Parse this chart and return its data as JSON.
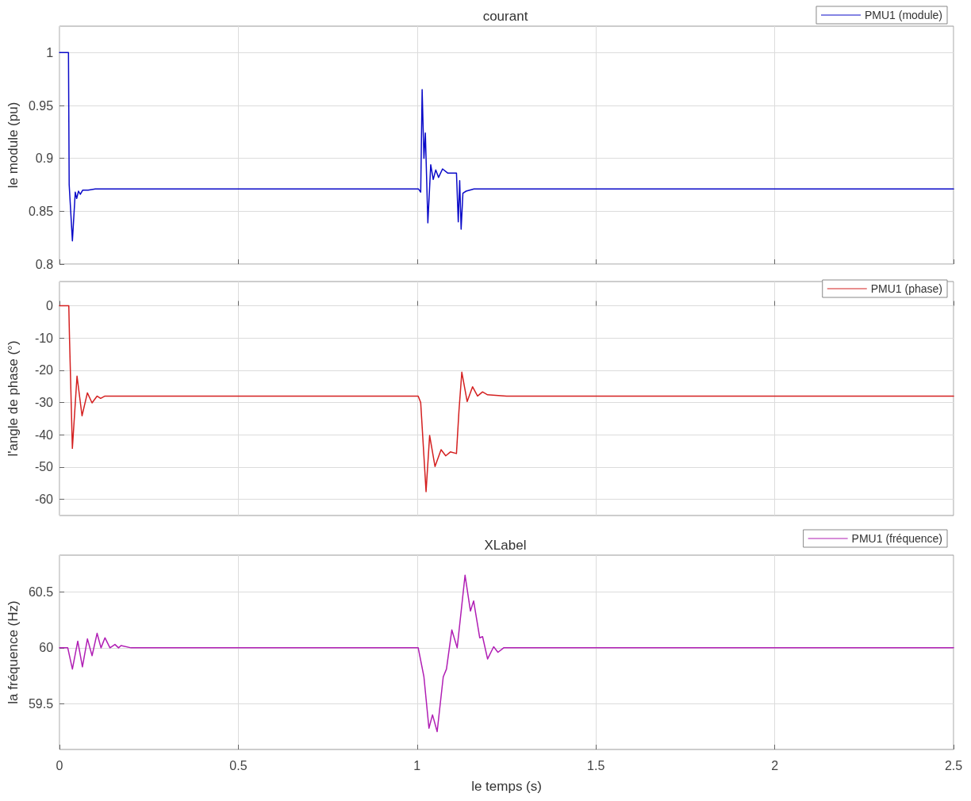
{
  "chart_data": [
    {
      "type": "line",
      "title": "courant",
      "ylabel": "le module (pu)",
      "xlim": [
        0,
        2.5
      ],
      "xticks": [
        0,
        0.5,
        1,
        1.5,
        2,
        2.5
      ],
      "ylim": [
        0.8,
        1.025
      ],
      "yticks": [
        0.8,
        0.85,
        0.9,
        0.95,
        1
      ],
      "grid": true,
      "legend": "top right",
      "tick_labels": "y",
      "series": [
        {
          "name": "PMU1 (module)",
          "color": "#0a0ac8",
          "x": [
            0,
            0.025,
            0.027,
            0.036,
            0.044,
            0.048,
            0.053,
            0.058,
            0.065,
            0.08,
            0.1,
            1.0,
            1.004,
            1.01,
            1.014,
            1.019,
            1.023,
            1.03,
            1.038,
            1.045,
            1.052,
            1.06,
            1.071,
            1.086,
            1.11,
            1.115,
            1.119,
            1.123,
            1.128,
            1.137,
            1.159,
            2.5
          ],
          "values": [
            1,
            1,
            0.875,
            0.822,
            0.868,
            0.862,
            0.869,
            0.866,
            0.87,
            0.87,
            0.871,
            0.871,
            0.871,
            0.868,
            0.965,
            0.9,
            0.924,
            0.839,
            0.894,
            0.88,
            0.889,
            0.882,
            0.89,
            0.886,
            0.886,
            0.84,
            0.879,
            0.833,
            0.867,
            0.869,
            0.871,
            0.871
          ]
        }
      ]
    },
    {
      "type": "line",
      "ylabel": "l'angle de phase (°)",
      "xlim": [
        0,
        2.5
      ],
      "xticks": [
        0,
        0.5,
        1,
        1.5,
        2,
        2.5
      ],
      "ylim": [
        -65,
        7.5
      ],
      "yticks": [
        -60,
        -50,
        -40,
        -30,
        -20,
        -10,
        0
      ],
      "grid": true,
      "legend": "top right",
      "tick_labels": "y",
      "series": [
        {
          "name": "PMU1 (phase)",
          "color": "#d42020",
          "x": [
            0,
            0.026,
            0.028,
            0.036,
            0.049,
            0.063,
            0.078,
            0.091,
            0.105,
            0.115,
            0.127,
            0.15,
            1.003,
            1.01,
            1.025,
            1.035,
            1.05,
            1.067,
            1.08,
            1.093,
            1.11,
            1.117,
            1.125,
            1.14,
            1.155,
            1.169,
            1.183,
            1.197,
            1.25,
            2.5
          ],
          "values": [
            0,
            0,
            -10,
            -44.2,
            -21.8,
            -34.1,
            -27,
            -30.1,
            -28,
            -28.7,
            -28,
            -28,
            -28,
            -30,
            -57.6,
            -40.2,
            -49.8,
            -44.6,
            -46.5,
            -45.3,
            -45.8,
            -32.6,
            -20.6,
            -29.7,
            -25.1,
            -28,
            -26.7,
            -27.6,
            -28,
            -28
          ]
        }
      ]
    },
    {
      "type": "line",
      "title": "XLabel",
      "xlabel": "le temps (s)",
      "ylabel": "la fréquence (Hz)",
      "xlim": [
        0,
        2.5
      ],
      "xticks": [
        0,
        0.5,
        1,
        1.5,
        2,
        2.5
      ],
      "ylim": [
        59.09,
        60.83
      ],
      "yticks": [
        59.5,
        60,
        60.5
      ],
      "grid": true,
      "legend": "top right",
      "series": [
        {
          "name": "PMU1 (fréquence)",
          "color": "#b01eb4",
          "x": [
            0,
            0.023,
            0.036,
            0.051,
            0.064,
            0.078,
            0.091,
            0.105,
            0.116,
            0.127,
            0.141,
            0.155,
            0.165,
            0.172,
            0.2,
            1.003,
            1.019,
            1.033,
            1.043,
            1.056,
            1.073,
            1.082,
            1.097,
            1.112,
            1.134,
            1.149,
            1.158,
            1.175,
            1.183,
            1.197,
            1.214,
            1.226,
            1.242,
            2.5
          ],
          "values": [
            60,
            60,
            59.81,
            60.06,
            59.83,
            60.08,
            59.93,
            60.13,
            60,
            60.09,
            60,
            60.03,
            60,
            60.02,
            60,
            60,
            59.74,
            59.28,
            59.4,
            59.25,
            59.74,
            59.81,
            60.16,
            60,
            60.65,
            60.33,
            60.42,
            60.09,
            60.1,
            59.9,
            60.01,
            59.96,
            60,
            60
          ]
        }
      ]
    }
  ]
}
